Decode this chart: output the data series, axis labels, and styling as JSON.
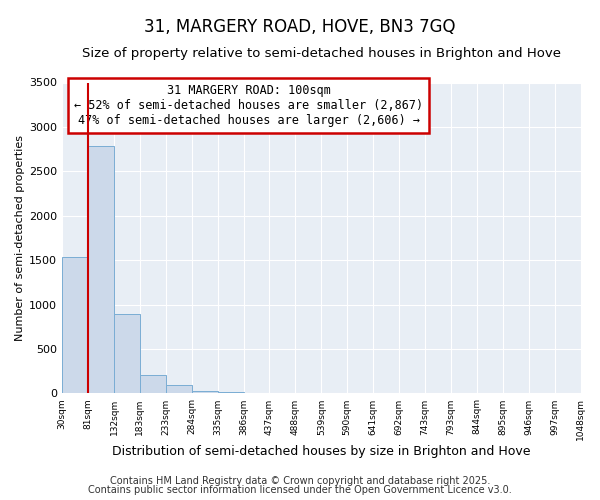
{
  "title": "31, MARGERY ROAD, HOVE, BN3 7GQ",
  "subtitle": "Size of property relative to semi-detached houses in Brighton and Hove",
  "xlabel": "Distribution of semi-detached houses by size in Brighton and Hove",
  "ylabel": "Number of semi-detached properties",
  "bin_labels": [
    "30sqm",
    "81sqm",
    "132sqm",
    "183sqm",
    "233sqm",
    "284sqm",
    "335sqm",
    "386sqm",
    "437sqm",
    "488sqm",
    "539sqm",
    "590sqm",
    "641sqm",
    "692sqm",
    "743sqm",
    "793sqm",
    "844sqm",
    "895sqm",
    "946sqm",
    "997sqm",
    "1048sqm"
  ],
  "bar_values": [
    1540,
    2780,
    900,
    205,
    90,
    25,
    15,
    0,
    0,
    0,
    0,
    0,
    0,
    0,
    0,
    0,
    0,
    0,
    0,
    0
  ],
  "bar_color": "#ccd9ea",
  "bar_edgecolor": "#7aadd4",
  "property_line_x": 1,
  "annotation_title": "31 MARGERY ROAD: 100sqm",
  "annotation_line2": "← 52% of semi-detached houses are smaller (2,867)",
  "annotation_line3": "47% of semi-detached houses are larger (2,606) →",
  "annotation_box_edgecolor": "#cc0000",
  "annotation_box_facecolor": "#ffffff",
  "vline_color": "#cc0000",
  "ylim": [
    0,
    3500
  ],
  "yticks": [
    0,
    500,
    1000,
    1500,
    2000,
    2500,
    3000,
    3500
  ],
  "bg_color": "#ffffff",
  "plot_bg_color": "#e8eef5",
  "grid_color": "#ffffff",
  "footer_line1": "Contains HM Land Registry data © Crown copyright and database right 2025.",
  "footer_line2": "Contains public sector information licensed under the Open Government Licence v3.0.",
  "title_fontsize": 12,
  "subtitle_fontsize": 9.5,
  "xlabel_fontsize": 9,
  "ylabel_fontsize": 8,
  "annotation_fontsize": 8.5,
  "footer_fontsize": 7
}
